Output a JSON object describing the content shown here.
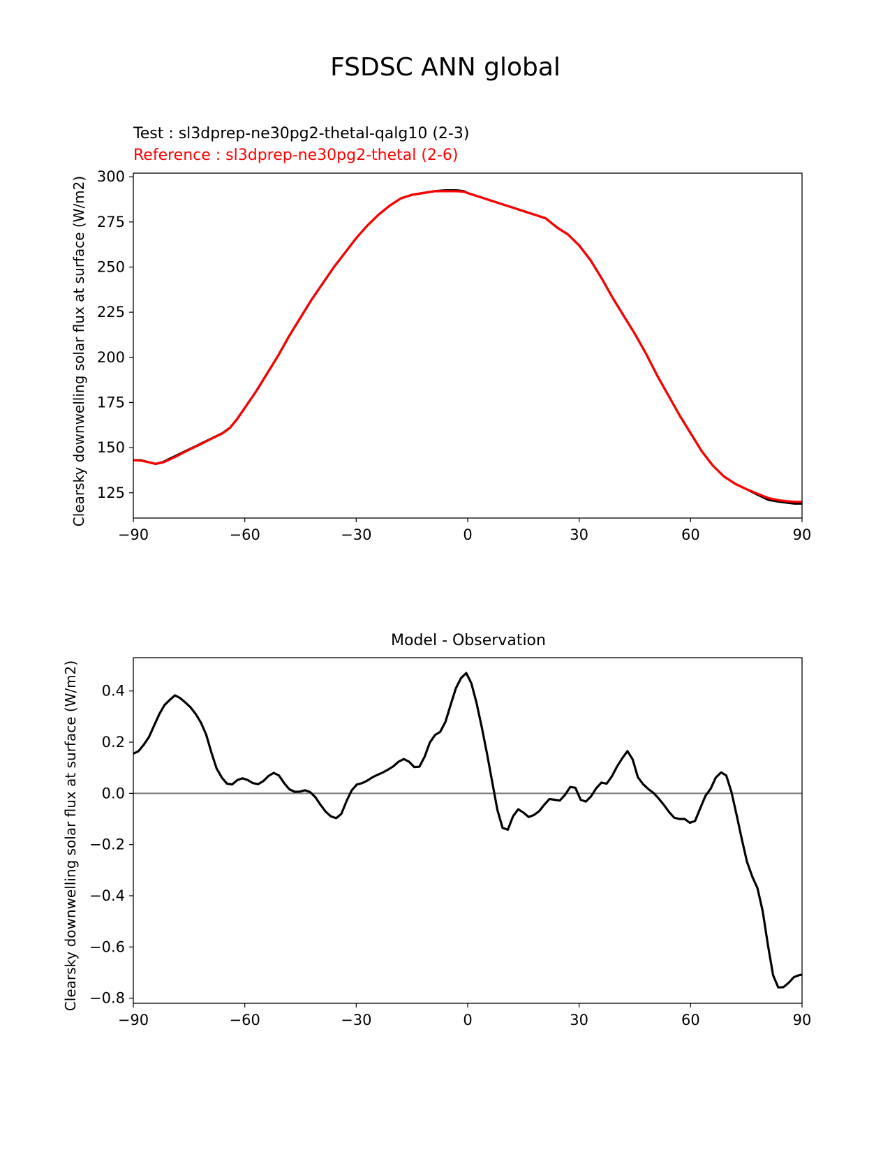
{
  "figure_title": "FSDSC ANN global",
  "colors": {
    "test": "#000000",
    "reference": "#ff0000",
    "zero_line": "#808080"
  },
  "chart_data": [
    {
      "type": "line",
      "title": "",
      "legend_texts": [
        {
          "text": "Test : sl3dprep-ne30pg2-thetal-qalg10 (2-3)",
          "color": "#000000"
        },
        {
          "text": "Reference : sl3dprep-ne30pg2-thetal (2-6)",
          "color": "#ff0000"
        }
      ],
      "ylabel": "Clearsky downwelling solar flux at surface (W/m2)",
      "xlabel": "",
      "xlim": [
        -90,
        90
      ],
      "ylim": [
        111,
        302
      ],
      "xticks": [
        -90,
        -60,
        -30,
        0,
        30,
        60,
        90
      ],
      "xtick_labels": [
        "−90",
        "−60",
        "−30",
        "0",
        "30",
        "60",
        "90"
      ],
      "yticks": [
        125,
        150,
        175,
        200,
        225,
        250,
        275,
        300
      ],
      "ytick_labels": [
        "125",
        "150",
        "175",
        "200",
        "225",
        "250",
        "275",
        "300"
      ],
      "grid": false,
      "series": [
        {
          "name": "Test : sl3dprep-ne30pg2-thetal-qalg10 (2-3)",
          "color": "#000000",
          "x": [
            -90,
            -88,
            -86,
            -84,
            -82,
            -80,
            -78,
            -75,
            -72,
            -69,
            -66,
            -64,
            -62,
            -60,
            -57,
            -54,
            -51,
            -48,
            -45,
            -42,
            -39,
            -36,
            -33,
            -30,
            -27,
            -24,
            -21,
            -18,
            -15,
            -12,
            -9,
            -6,
            -3,
            -1,
            0,
            3,
            6,
            9,
            12,
            15,
            18,
            21,
            24,
            27,
            30,
            33,
            36,
            39,
            42,
            45,
            48,
            51,
            54,
            57,
            60,
            63,
            66,
            69,
            72,
            75,
            78,
            81,
            84,
            86,
            88,
            90
          ],
          "y": [
            143,
            143,
            142,
            141,
            142,
            144,
            146,
            149,
            152,
            155,
            158,
            161,
            166,
            172,
            181,
            191,
            201,
            212,
            222,
            232,
            241,
            250,
            258,
            266,
            273,
            279,
            284,
            288,
            290,
            291,
            292,
            292.5,
            292.5,
            292,
            291,
            289,
            287,
            285,
            283,
            281,
            279,
            277,
            272,
            268,
            262,
            254,
            244,
            233,
            223,
            213,
            202,
            190,
            179,
            168,
            158,
            148,
            140,
            134,
            130,
            127,
            124,
            121,
            120,
            119.5,
            119,
            119
          ]
        },
        {
          "name": "Reference : sl3dprep-ne30pg2-thetal (2-6)",
          "color": "#ff0000",
          "x": [
            -90,
            -88,
            -86,
            -84,
            -82,
            -80,
            -78,
            -75,
            -72,
            -69,
            -66,
            -64,
            -62,
            -60,
            -57,
            -54,
            -51,
            -48,
            -45,
            -42,
            -39,
            -36,
            -33,
            -30,
            -27,
            -24,
            -21,
            -18,
            -15,
            -12,
            -9,
            -6,
            -3,
            -1,
            0,
            3,
            6,
            9,
            12,
            15,
            18,
            21,
            24,
            27,
            30,
            33,
            36,
            39,
            42,
            45,
            48,
            51,
            54,
            57,
            60,
            63,
            66,
            69,
            72,
            75,
            78,
            81,
            84,
            86,
            88,
            90
          ],
          "y": [
            143,
            142.8,
            142,
            141,
            141.8,
            143.6,
            145.6,
            148.8,
            151.8,
            154.9,
            157.9,
            160.9,
            165.9,
            172,
            181,
            191,
            201,
            212,
            222,
            232,
            241,
            250,
            258,
            266,
            273,
            279,
            284,
            288,
            290,
            291,
            292,
            292,
            292,
            291.7,
            291,
            289,
            287,
            285,
            283,
            281,
            279,
            277,
            272,
            268,
            262,
            254,
            244,
            233,
            223,
            213,
            202,
            190,
            179,
            168,
            158,
            148,
            140,
            134,
            130,
            127,
            124.5,
            122,
            120.8,
            120.3,
            120,
            120
          ]
        }
      ]
    },
    {
      "type": "line",
      "title": "Model - Observation",
      "ylabel": "Clearsky downwelling solar flux at surface (W/m2)",
      "xlabel": "",
      "xlim": [
        -90,
        90
      ],
      "ylim": [
        -0.82,
        0.53
      ],
      "xticks": [
        -90,
        -60,
        -30,
        0,
        30,
        60,
        90
      ],
      "xtick_labels": [
        "−90",
        "−60",
        "−30",
        "0",
        "30",
        "60",
        "90"
      ],
      "yticks": [
        -0.8,
        -0.6,
        -0.4,
        -0.2,
        0.0,
        0.2,
        0.4
      ],
      "ytick_labels": [
        "−0.8",
        "−0.6",
        "−0.4",
        "−0.2",
        "0.0",
        "0.2",
        "0.4"
      ],
      "grid": false,
      "zero_line": true,
      "series": [
        {
          "name": "",
          "color": "#000000",
          "x": [
            -90,
            -88.6,
            -87.2,
            -85.8,
            -84.4,
            -83,
            -81.6,
            -80.2,
            -78.8,
            -77.4,
            -76,
            -74.6,
            -73.2,
            -71.8,
            -70.4,
            -69,
            -67.6,
            -66.2,
            -64.8,
            -63.4,
            -62,
            -60.6,
            -59.2,
            -57.8,
            -56.4,
            -55,
            -53.6,
            -52.2,
            -50.8,
            -49.4,
            -48,
            -46.6,
            -45.2,
            -43.8,
            -42.4,
            -41,
            -39.6,
            -38.2,
            -36.8,
            -35.4,
            -34,
            -32.6,
            -31.2,
            -29.8,
            -28.4,
            -27,
            -25.6,
            -24.2,
            -22.8,
            -21.4,
            -20,
            -18.6,
            -17.2,
            -15.8,
            -14.4,
            -13,
            -11.6,
            -10.2,
            -8.8,
            -7.4,
            -6,
            -4.6,
            -3.2,
            -1.8,
            -0.4,
            1,
            2.4,
            3.8,
            5.2,
            6.6,
            8,
            9.4,
            10.8,
            12.2,
            13.6,
            15,
            16.4,
            17.8,
            19.2,
            20.6,
            22,
            23.4,
            24.8,
            26.2,
            27.6,
            29,
            30.4,
            31.8,
            33.2,
            34.6,
            36,
            37.4,
            38.8,
            40.2,
            41.6,
            43,
            44.4,
            45.8,
            47.2,
            48.6,
            50,
            51.4,
            52.8,
            54.2,
            55.6,
            57,
            58.4,
            59.8,
            61.2,
            62.6,
            64,
            65.4,
            66.8,
            68.2,
            69.6,
            71,
            72.4,
            73.8,
            75.2,
            76.6,
            78,
            79.4,
            80.8,
            82.2,
            83.6,
            85,
            86.4,
            87.8,
            89.2,
            90
          ],
          "y": [
            0.155,
            0.165,
            0.19,
            0.22,
            0.265,
            0.31,
            0.345,
            0.365,
            0.383,
            0.372,
            0.355,
            0.336,
            0.31,
            0.276,
            0.23,
            0.16,
            0.098,
            0.062,
            0.038,
            0.035,
            0.052,
            0.059,
            0.052,
            0.04,
            0.036,
            0.048,
            0.068,
            0.08,
            0.07,
            0.04,
            0.016,
            0.006,
            0.007,
            0.012,
            0.005,
            -0.015,
            -0.045,
            -0.072,
            -0.09,
            -0.097,
            -0.08,
            -0.03,
            0.012,
            0.035,
            0.04,
            0.05,
            0.063,
            0.073,
            0.082,
            0.093,
            0.106,
            0.124,
            0.134,
            0.124,
            0.103,
            0.104,
            0.143,
            0.198,
            0.228,
            0.24,
            0.279,
            0.345,
            0.41,
            0.45,
            0.47,
            0.43,
            0.352,
            0.258,
            0.155,
            0.045,
            -0.065,
            -0.135,
            -0.142,
            -0.09,
            -0.062,
            -0.075,
            -0.092,
            -0.085,
            -0.07,
            -0.045,
            -0.022,
            -0.025,
            -0.028,
            -0.006,
            0.025,
            0.022,
            -0.025,
            -0.032,
            -0.012,
            0.02,
            0.042,
            0.038,
            0.066,
            0.105,
            0.137,
            0.165,
            0.133,
            0.063,
            0.036,
            0.017,
            0.002,
            -0.02,
            -0.045,
            -0.073,
            -0.095,
            -0.1,
            -0.1,
            -0.115,
            -0.108,
            -0.058,
            -0.01,
            0.018,
            0.062,
            0.082,
            0.07,
            0.005,
            -0.085,
            -0.18,
            -0.268,
            -0.325,
            -0.37,
            -0.46,
            -0.59,
            -0.71,
            -0.758,
            -0.757,
            -0.74,
            -0.718,
            -0.71,
            -0.708
          ]
        }
      ]
    }
  ]
}
